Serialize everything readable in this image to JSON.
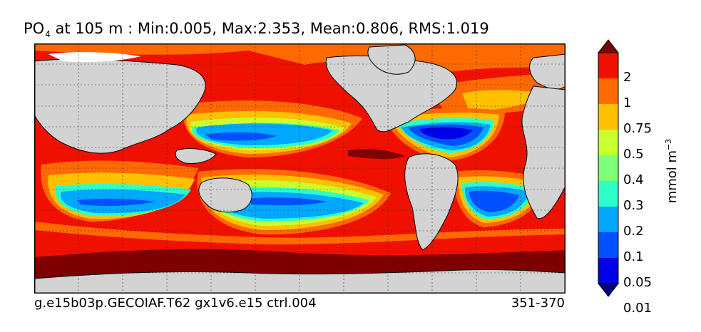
{
  "header": {
    "variable": "PO",
    "variable_subscript": "4",
    "title_rest": " at 105 m : Min:0.005, Max:2.353, Mean:0.806, RMS:1.019"
  },
  "footer": {
    "case_name": "g.e15b03p.GECOIAF.T62 gx1v6.e15 ctrl.004",
    "years": "351-370"
  },
  "colorbar": {
    "units_base": "mmol m",
    "units_exp": "−3",
    "ticks": [
      "2",
      "1",
      "0.75",
      "0.5",
      "0.4",
      "0.3",
      "0.2",
      "0.1",
      "0.05",
      "0.01"
    ],
    "colors": [
      "#00007f",
      "#0000e6",
      "#0050ff",
      "#00a8ff",
      "#2dffca",
      "#7dff7a",
      "#c8ff2e",
      "#ffc000",
      "#ff6a00",
      "#f01000",
      "#7f0000"
    ]
  },
  "map_colors": {
    "land": "#d3d3d3",
    "ice": "#ffffff"
  }
}
